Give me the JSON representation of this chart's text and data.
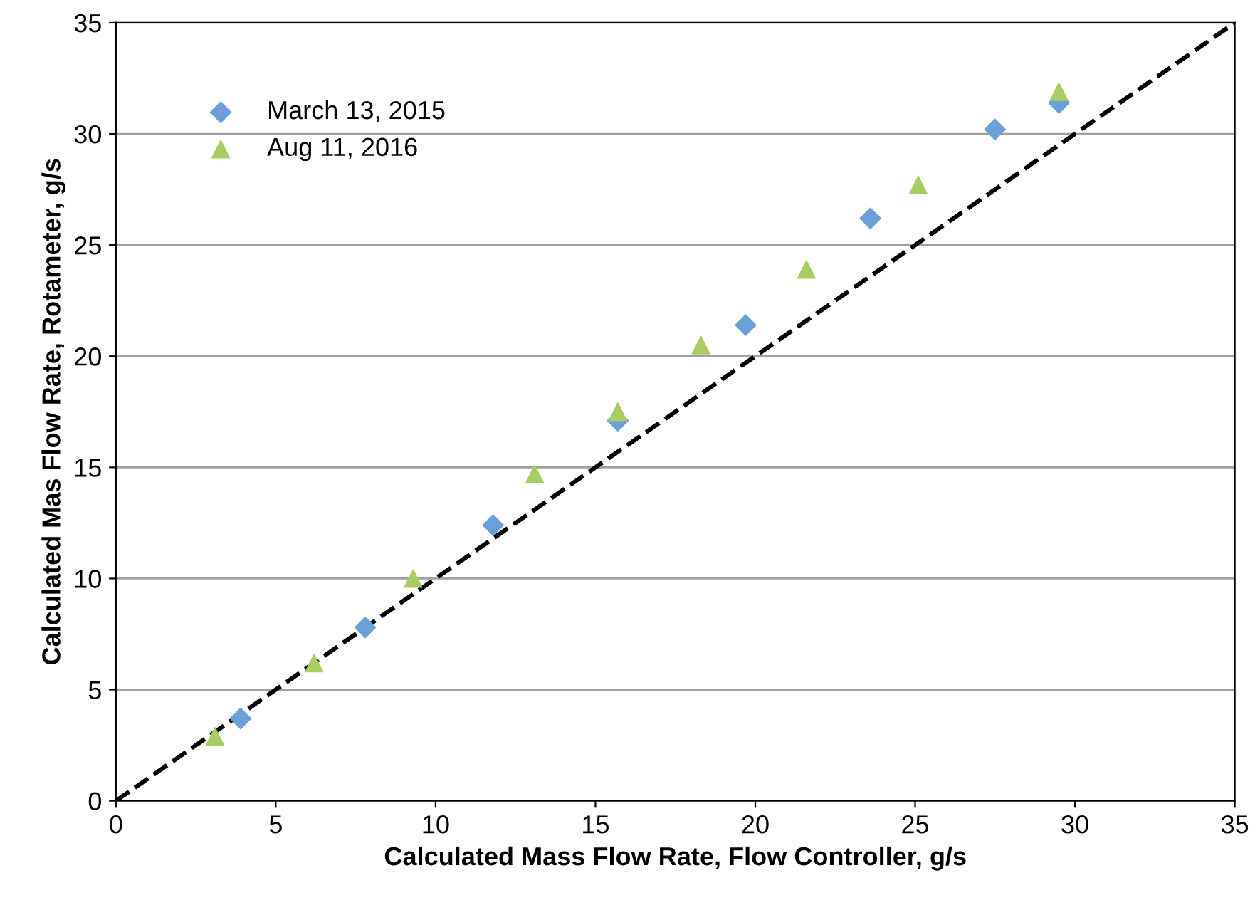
{
  "chart_data": {
    "type": "scatter",
    "xlabel": "Calculated Mass Flow Rate, Flow Controller, g/s",
    "ylabel": "Calculated Mas Flow Rate, Rotameter, g/s",
    "series": [
      {
        "name": "March 13, 2015",
        "color": "#6a9fd8",
        "marker": "diamond",
        "x": [
          3.9,
          7.8,
          11.8,
          15.7,
          19.7,
          23.6,
          27.5,
          29.5
        ],
        "values": [
          3.7,
          7.8,
          12.4,
          17.1,
          21.4,
          26.2,
          30.2,
          31.4
        ]
      },
      {
        "name": "Aug 11, 2016",
        "color": "#a9cc63",
        "marker": "triangle",
        "x": [
          3.1,
          6.2,
          9.3,
          13.1,
          15.7,
          18.3,
          21.6,
          25.1,
          29.5
        ],
        "values": [
          2.9,
          6.2,
          10.0,
          14.7,
          17.5,
          20.5,
          23.9,
          27.7,
          31.9
        ]
      },
      {
        "type": "line",
        "color": "#000000",
        "line_style": "dashed",
        "marker": "none",
        "x": [
          0,
          35
        ],
        "values": [
          0,
          35
        ]
      }
    ],
    "xlim": [
      0,
      35
    ],
    "ylim": [
      0,
      35
    ],
    "xticks": [
      0,
      5,
      10,
      15,
      20,
      25,
      30,
      35
    ],
    "yticks": [
      0,
      5,
      10,
      15,
      20,
      25,
      30,
      35
    ],
    "grid": "y",
    "legend": "top left"
  }
}
